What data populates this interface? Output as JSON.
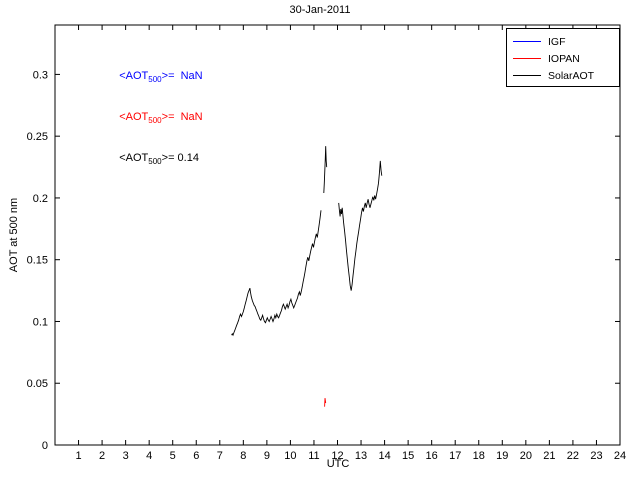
{
  "figure": {
    "title": "30-Jan-2011",
    "xlabel": "UTC",
    "ylabel": "AOT at 500 nm"
  },
  "annotations": [
    {
      "pre": "<AOT",
      "sub": "500",
      "post": ">=",
      "value": "  NaN",
      "color": "#0000FF"
    },
    {
      "pre": "<AOT",
      "sub": "500",
      "post": ">=",
      "value": "  NaN",
      "color": "#FF0000"
    },
    {
      "pre": "<AOT",
      "sub": "500",
      "post": ">=",
      "value": " 0.14",
      "color": "#000000"
    }
  ],
  "chart_data": {
    "type": "line",
    "title": "30-Jan-2011",
    "xlabel": "UTC",
    "ylabel": "AOT at 500 nm",
    "xlim": [
      0,
      24
    ],
    "ylim": [
      0,
      0.34
    ],
    "xticks": [
      1,
      2,
      3,
      4,
      5,
      6,
      7,
      8,
      9,
      10,
      11,
      12,
      13,
      14,
      15,
      16,
      17,
      18,
      19,
      20,
      21,
      22,
      23,
      24
    ],
    "yticks": [
      0,
      0.05,
      0.1,
      0.15,
      0.2,
      0.25,
      0.3
    ],
    "grid": false,
    "legend_position": "top-right",
    "series": [
      {
        "name": "IGF",
        "color": "#0000FF",
        "mean_aot500": "NaN",
        "segments": []
      },
      {
        "name": "IOPAN",
        "color": "#FF0000",
        "mean_aot500": "NaN",
        "segments": [
          [
            [
              11.45,
              0.031
            ],
            [
              11.47,
              0.038
            ],
            [
              11.5,
              0.034
            ]
          ]
        ]
      },
      {
        "name": "SolarAOT",
        "color": "#000000",
        "mean_aot500": "0.14",
        "segments": [
          [
            [
              7.5,
              0.089
            ],
            [
              7.53,
              0.09
            ],
            [
              7.56,
              0.089
            ],
            [
              7.6,
              0.091
            ],
            [
              7.64,
              0.093
            ],
            [
              7.68,
              0.095
            ],
            [
              7.72,
              0.097
            ],
            [
              7.76,
              0.099
            ],
            [
              7.8,
              0.101
            ],
            [
              7.84,
              0.104
            ],
            [
              7.88,
              0.106
            ],
            [
              7.92,
              0.104
            ],
            [
              7.96,
              0.106
            ],
            [
              8.0,
              0.108
            ],
            [
              8.04,
              0.111
            ],
            [
              8.08,
              0.114
            ],
            [
              8.12,
              0.117
            ],
            [
              8.16,
              0.12
            ],
            [
              8.2,
              0.123
            ],
            [
              8.24,
              0.125
            ],
            [
              8.28,
              0.127
            ],
            [
              8.3,
              0.124
            ],
            [
              8.34,
              0.12
            ],
            [
              8.38,
              0.117
            ],
            [
              8.42,
              0.115
            ],
            [
              8.46,
              0.113
            ],
            [
              8.5,
              0.112
            ],
            [
              8.54,
              0.11
            ],
            [
              8.58,
              0.108
            ],
            [
              8.62,
              0.106
            ],
            [
              8.66,
              0.104
            ],
            [
              8.7,
              0.102
            ],
            [
              8.74,
              0.101
            ],
            [
              8.78,
              0.103
            ],
            [
              8.82,
              0.105
            ],
            [
              8.86,
              0.102
            ],
            [
              8.9,
              0.1
            ],
            [
              8.94,
              0.099
            ],
            [
              8.98,
              0.101
            ],
            [
              9.02,
              0.103
            ],
            [
              9.06,
              0.101
            ],
            [
              9.1,
              0.1
            ],
            [
              9.14,
              0.102
            ],
            [
              9.18,
              0.104
            ],
            [
              9.22,
              0.102
            ],
            [
              9.26,
              0.1
            ],
            [
              9.3,
              0.102
            ],
            [
              9.34,
              0.105
            ],
            [
              9.38,
              0.103
            ],
            [
              9.42,
              0.106
            ],
            [
              9.46,
              0.104
            ],
            [
              9.5,
              0.103
            ],
            [
              9.54,
              0.105
            ],
            [
              9.58,
              0.107
            ],
            [
              9.62,
              0.109
            ],
            [
              9.66,
              0.112
            ],
            [
              9.7,
              0.114
            ],
            [
              9.74,
              0.112
            ],
            [
              9.78,
              0.11
            ],
            [
              9.82,
              0.112
            ],
            [
              9.86,
              0.114
            ],
            [
              9.9,
              0.111
            ],
            [
              9.94,
              0.113
            ],
            [
              9.98,
              0.116
            ],
            [
              10.02,
              0.118
            ],
            [
              10.06,
              0.115
            ],
            [
              10.1,
              0.113
            ],
            [
              10.14,
              0.111
            ],
            [
              10.18,
              0.113
            ],
            [
              10.22,
              0.115
            ],
            [
              10.26,
              0.117
            ],
            [
              10.3,
              0.119
            ],
            [
              10.34,
              0.122
            ],
            [
              10.38,
              0.124
            ],
            [
              10.42,
              0.121
            ],
            [
              10.46,
              0.124
            ],
            [
              10.5,
              0.128
            ],
            [
              10.54,
              0.132
            ],
            [
              10.58,
              0.136
            ],
            [
              10.62,
              0.14
            ],
            [
              10.66,
              0.145
            ],
            [
              10.7,
              0.149
            ],
            [
              10.74,
              0.152
            ],
            [
              10.78,
              0.149
            ],
            [
              10.82,
              0.153
            ],
            [
              10.86,
              0.157
            ],
            [
              10.9,
              0.16
            ],
            [
              10.94,
              0.163
            ],
            [
              10.98,
              0.16
            ],
            [
              11.02,
              0.164
            ],
            [
              11.06,
              0.168
            ],
            [
              11.1,
              0.171
            ],
            [
              11.14,
              0.168
            ],
            [
              11.18,
              0.173
            ],
            [
              11.22,
              0.178
            ],
            [
              11.26,
              0.184
            ],
            [
              11.3,
              0.19
            ]
          ],
          [
            [
              11.42,
              0.204
            ],
            [
              11.44,
              0.212
            ],
            [
              11.46,
              0.222
            ],
            [
              11.48,
              0.232
            ],
            [
              11.5,
              0.242
            ],
            [
              11.52,
              0.23
            ],
            [
              11.54,
              0.225
            ]
          ],
          [
            [
              12.05,
              0.196
            ],
            [
              12.08,
              0.19
            ],
            [
              12.11,
              0.185
            ],
            [
              12.14,
              0.191
            ],
            [
              12.17,
              0.187
            ],
            [
              12.2,
              0.192
            ],
            [
              12.23,
              0.186
            ],
            [
              12.26,
              0.18
            ],
            [
              12.3,
              0.173
            ],
            [
              12.34,
              0.166
            ],
            [
              12.38,
              0.158
            ],
            [
              12.42,
              0.15
            ],
            [
              12.46,
              0.143
            ],
            [
              12.5,
              0.136
            ],
            [
              12.54,
              0.129
            ],
            [
              12.58,
              0.125
            ],
            [
              12.62,
              0.13
            ],
            [
              12.66,
              0.137
            ],
            [
              12.7,
              0.144
            ],
            [
              12.74,
              0.151
            ],
            [
              12.78,
              0.157
            ],
            [
              12.82,
              0.163
            ],
            [
              12.86,
              0.168
            ],
            [
              12.9,
              0.173
            ],
            [
              12.94,
              0.178
            ],
            [
              12.98,
              0.183
            ],
            [
              13.02,
              0.188
            ],
            [
              13.06,
              0.192
            ],
            [
              13.1,
              0.189
            ],
            [
              13.14,
              0.193
            ],
            [
              13.18,
              0.196
            ],
            [
              13.22,
              0.192
            ],
            [
              13.26,
              0.196
            ],
            [
              13.3,
              0.199
            ],
            [
              13.34,
              0.195
            ],
            [
              13.38,
              0.192
            ],
            [
              13.42,
              0.195
            ],
            [
              13.46,
              0.198
            ],
            [
              13.5,
              0.201
            ],
            [
              13.54,
              0.198
            ],
            [
              13.58,
              0.202
            ],
            [
              13.62,
              0.199
            ],
            [
              13.66,
              0.203
            ],
            [
              13.7,
              0.207
            ],
            [
              13.74,
              0.212
            ],
            [
              13.78,
              0.22
            ],
            [
              13.82,
              0.23
            ],
            [
              13.85,
              0.222
            ],
            [
              13.88,
              0.218
            ]
          ]
        ]
      }
    ]
  }
}
